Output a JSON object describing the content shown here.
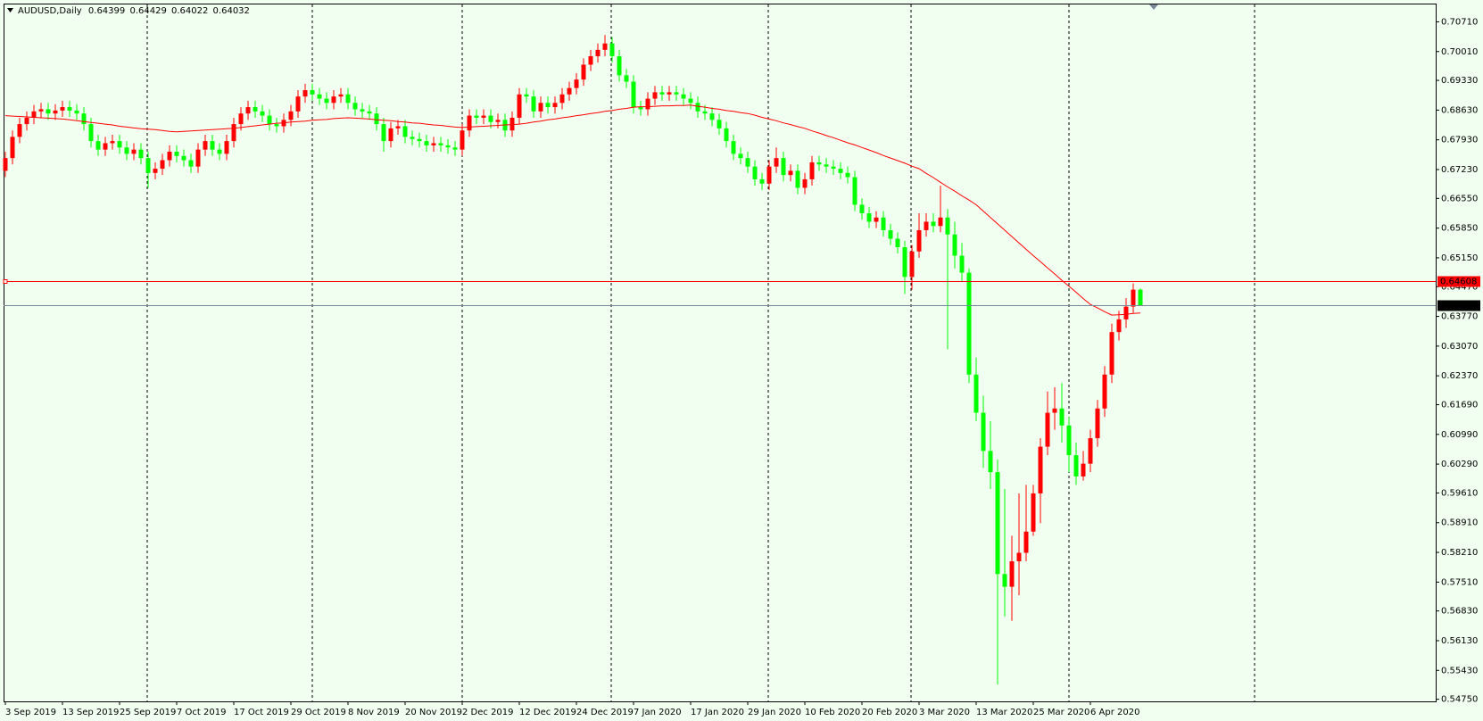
{
  "chart_data": {
    "type": "candlestick",
    "title": "AUDUSD,Daily",
    "header_ohlc": [
      0.64399,
      0.64429,
      0.64022,
      0.64032
    ],
    "up_color": "#ff0000",
    "down_color": "#00ff00",
    "categories": [
      "3 Sep 2019",
      null,
      null,
      null,
      null,
      null,
      null,
      null,
      "13 Sep 2019",
      null,
      null,
      null,
      null,
      null,
      null,
      null,
      "25 Sep 2019",
      null,
      null,
      null,
      null,
      null,
      null,
      null,
      "7 Oct 2019",
      null,
      null,
      null,
      null,
      null,
      null,
      null,
      "17 Oct 2019",
      null,
      null,
      null,
      null,
      null,
      null,
      null,
      "29 Oct 2019",
      null,
      null,
      null,
      null,
      null,
      null,
      null,
      "8 Nov 2019",
      null,
      null,
      null,
      null,
      null,
      null,
      null,
      "20 Nov 2019",
      null,
      null,
      null,
      null,
      null,
      null,
      null,
      "2 Dec 2019",
      null,
      null,
      null,
      null,
      null,
      null,
      null,
      "12 Dec 2019",
      null,
      null,
      null,
      null,
      null,
      null,
      null,
      "24 Dec 2019",
      null,
      null,
      null,
      null,
      null,
      null,
      null,
      "7 Jan 2020",
      null,
      null,
      null,
      null,
      null,
      null,
      null,
      "17 Jan 2020",
      null,
      null,
      null,
      null,
      null,
      null,
      null,
      "29 Jan 2020",
      null,
      null,
      null,
      null,
      null,
      null,
      null,
      "10 Feb 2020",
      null,
      null,
      null,
      null,
      null,
      null,
      null,
      "20 Feb 2020",
      null,
      null,
      null,
      null,
      null,
      null,
      null,
      "3 Mar 2020",
      null,
      null,
      null,
      null,
      null,
      null,
      null,
      "13 Mar 2020",
      null,
      null,
      null,
      null,
      null,
      null,
      null,
      "25 Mar 2020",
      null,
      null,
      null,
      null,
      null,
      null,
      null,
      "6 Apr 2020",
      null,
      null,
      null,
      null,
      null,
      null,
      null
    ],
    "open": [
      0.672,
      0.675,
      0.68,
      0.683,
      0.6845,
      0.686,
      0.6865,
      0.6855,
      0.6862,
      0.687,
      0.6862,
      0.6855,
      0.683,
      0.679,
      0.677,
      0.6785,
      0.679,
      0.6775,
      0.676,
      0.677,
      0.675,
      0.6715,
      0.6725,
      0.6745,
      0.6765,
      0.6755,
      0.6745,
      0.673,
      0.677,
      0.679,
      0.677,
      0.676,
      0.679,
      0.683,
      0.6855,
      0.687,
      0.686,
      0.685,
      0.683,
      0.6825,
      0.684,
      0.686,
      0.6895,
      0.691,
      0.69,
      0.689,
      0.688,
      0.6895,
      0.69,
      0.688,
      0.6865,
      0.686,
      0.6855,
      0.683,
      0.679,
      0.682,
      0.6825,
      0.68,
      0.6795,
      0.679,
      0.678,
      0.6785,
      0.678,
      0.6775,
      0.677,
      0.6815,
      0.685,
      0.6845,
      0.685,
      0.6835,
      0.684,
      0.6815,
      0.6845,
      0.69,
      0.6895,
      0.686,
      0.688,
      0.687,
      0.688,
      0.69,
      0.6915,
      0.6935,
      0.697,
      0.699,
      0.7005,
      0.702,
      0.699,
      0.6945,
      0.693,
      0.687,
      0.6865,
      0.689,
      0.6905,
      0.69,
      0.6905,
      0.69,
      0.689,
      0.688,
      0.686,
      0.6855,
      0.684,
      0.682,
      0.679,
      0.676,
      0.675,
      0.673,
      0.67,
      0.669,
      0.673,
      0.675,
      0.671,
      0.672,
      0.668,
      0.67,
      0.674,
      0.6735,
      0.673,
      0.6725,
      0.6715,
      0.6705,
      0.664,
      0.662,
      0.66,
      0.661,
      0.658,
      0.656,
      0.654,
      0.647,
      0.653,
      0.658,
      0.66,
      0.659,
      0.661,
      0.657,
      0.652,
      0.648,
      0.624,
      0.615,
      0.606,
      0.601,
      0.577,
      0.574,
      0.58,
      0.582,
      0.587,
      0.596,
      0.607,
      0.615,
      0.616,
      0.612,
      0.605,
      0.6,
      0.603,
      0.609,
      0.616,
      0.624,
      0.634,
      0.637,
      0.64,
      0.64399
    ],
    "high": [
      0.6765,
      0.6815,
      0.6845,
      0.686,
      0.6875,
      0.688,
      0.688,
      0.6877,
      0.6885,
      0.6885,
      0.6877,
      0.687,
      0.6845,
      0.6805,
      0.68,
      0.6805,
      0.6805,
      0.679,
      0.6785,
      0.6785,
      0.6765,
      0.674,
      0.676,
      0.678,
      0.678,
      0.677,
      0.676,
      0.6785,
      0.6805,
      0.6805,
      0.6785,
      0.6805,
      0.6845,
      0.687,
      0.6885,
      0.6885,
      0.6875,
      0.6865,
      0.6845,
      0.6855,
      0.6875,
      0.691,
      0.6925,
      0.6925,
      0.6915,
      0.6905,
      0.691,
      0.6915,
      0.6915,
      0.6895,
      0.688,
      0.6875,
      0.687,
      0.6845,
      0.6835,
      0.684,
      0.684,
      0.6815,
      0.681,
      0.6805,
      0.68,
      0.68,
      0.6795,
      0.679,
      0.683,
      0.6865,
      0.6865,
      0.6865,
      0.6865,
      0.6855,
      0.6855,
      0.686,
      0.6915,
      0.6915,
      0.691,
      0.6895,
      0.6895,
      0.6895,
      0.6915,
      0.693,
      0.695,
      0.6985,
      0.7005,
      0.702,
      0.704,
      0.7035,
      0.7005,
      0.696,
      0.6945,
      0.6885,
      0.6905,
      0.692,
      0.692,
      0.692,
      0.692,
      0.6915,
      0.6905,
      0.6895,
      0.6875,
      0.687,
      0.6855,
      0.6835,
      0.6805,
      0.6775,
      0.6765,
      0.6745,
      0.6715,
      0.6745,
      0.6775,
      0.6765,
      0.6735,
      0.6735,
      0.6715,
      0.6755,
      0.6755,
      0.675,
      0.6745,
      0.674,
      0.673,
      0.672,
      0.6655,
      0.6635,
      0.6625,
      0.6625,
      0.6595,
      0.6575,
      0.6555,
      0.6545,
      0.662,
      0.662,
      0.662,
      0.6685,
      0.663,
      0.66,
      0.655,
      0.649,
      0.628,
      0.619,
      0.613,
      0.604,
      0.597,
      0.586,
      0.596,
      0.598,
      0.598,
      0.609,
      0.62,
      0.621,
      0.622,
      0.614,
      0.608,
      0.606,
      0.611,
      0.618,
      0.626,
      0.636,
      0.639,
      0.642,
      0.6455,
      0.64429
    ],
    "low": [
      0.6705,
      0.6735,
      0.6785,
      0.6815,
      0.683,
      0.6845,
      0.684,
      0.684,
      0.6847,
      0.6847,
      0.684,
      0.6815,
      0.6775,
      0.6755,
      0.6755,
      0.677,
      0.676,
      0.6745,
      0.6745,
      0.6735,
      0.668,
      0.67,
      0.671,
      0.673,
      0.674,
      0.673,
      0.6715,
      0.6715,
      0.6755,
      0.6755,
      0.6745,
      0.6745,
      0.6775,
      0.6815,
      0.684,
      0.6845,
      0.6835,
      0.6815,
      0.681,
      0.681,
      0.6825,
      0.6845,
      0.688,
      0.6885,
      0.6875,
      0.6865,
      0.6865,
      0.688,
      0.6865,
      0.685,
      0.6845,
      0.684,
      0.6815,
      0.6765,
      0.6775,
      0.6805,
      0.6785,
      0.678,
      0.6775,
      0.6765,
      0.6765,
      0.6765,
      0.676,
      0.6755,
      0.6755,
      0.68,
      0.683,
      0.683,
      0.682,
      0.682,
      0.68,
      0.68,
      0.683,
      0.688,
      0.6845,
      0.6845,
      0.6855,
      0.6855,
      0.6865,
      0.6885,
      0.69,
      0.692,
      0.6955,
      0.6975,
      0.699,
      0.6975,
      0.693,
      0.6915,
      0.6855,
      0.685,
      0.685,
      0.6875,
      0.6885,
      0.6885,
      0.6885,
      0.6875,
      0.6865,
      0.6845,
      0.684,
      0.6825,
      0.6805,
      0.6775,
      0.6745,
      0.6735,
      0.6715,
      0.6685,
      0.6675,
      0.6675,
      0.6715,
      0.6695,
      0.6695,
      0.6665,
      0.6665,
      0.6685,
      0.672,
      0.6715,
      0.671,
      0.67,
      0.669,
      0.6625,
      0.6605,
      0.6585,
      0.6585,
      0.6565,
      0.6545,
      0.6525,
      0.643,
      0.644,
      0.6515,
      0.6565,
      0.6575,
      0.6575,
      0.63,
      0.649,
      0.646,
      0.622,
      0.613,
      0.602,
      0.597,
      0.551,
      0.567,
      0.566,
      0.572,
      0.58,
      0.586,
      0.589,
      0.605,
      0.611,
      0.608,
      0.601,
      0.598,
      0.599,
      0.601,
      0.607,
      0.614,
      0.622,
      0.632,
      0.635,
      0.6385,
      0.64022
    ],
    "close": [
      0.675,
      0.68,
      0.683,
      0.6845,
      0.686,
      0.6865,
      0.6855,
      0.6862,
      0.687,
      0.6862,
      0.6855,
      0.683,
      0.679,
      0.677,
      0.6785,
      0.679,
      0.6775,
      0.676,
      0.677,
      0.675,
      0.6715,
      0.6725,
      0.6745,
      0.6765,
      0.6755,
      0.6745,
      0.673,
      0.677,
      0.679,
      0.677,
      0.676,
      0.679,
      0.683,
      0.6855,
      0.687,
      0.686,
      0.685,
      0.683,
      0.6825,
      0.684,
      0.686,
      0.6895,
      0.691,
      0.69,
      0.689,
      0.688,
      0.6895,
      0.69,
      0.688,
      0.6865,
      0.686,
      0.6855,
      0.683,
      0.679,
      0.682,
      0.6825,
      0.68,
      0.6795,
      0.679,
      0.678,
      0.6785,
      0.678,
      0.6775,
      0.677,
      0.6815,
      0.685,
      0.6845,
      0.685,
      0.6835,
      0.684,
      0.6815,
      0.6845,
      0.69,
      0.6895,
      0.686,
      0.688,
      0.687,
      0.688,
      0.69,
      0.6915,
      0.6935,
      0.697,
      0.699,
      0.7005,
      0.702,
      0.699,
      0.6945,
      0.693,
      0.687,
      0.6865,
      0.689,
      0.6905,
      0.69,
      0.6905,
      0.69,
      0.689,
      0.688,
      0.686,
      0.6855,
      0.684,
      0.682,
      0.679,
      0.676,
      0.675,
      0.673,
      0.67,
      0.669,
      0.673,
      0.675,
      0.671,
      0.672,
      0.668,
      0.67,
      0.674,
      0.6735,
      0.673,
      0.6725,
      0.6715,
      0.6705,
      0.664,
      0.662,
      0.66,
      0.661,
      0.658,
      0.656,
      0.654,
      0.647,
      0.653,
      0.658,
      0.66,
      0.659,
      0.661,
      0.657,
      0.652,
      0.648,
      0.624,
      0.615,
      0.606,
      0.601,
      0.577,
      0.574,
      0.58,
      0.582,
      0.587,
      0.596,
      0.607,
      0.615,
      0.616,
      0.612,
      0.605,
      0.6,
      0.603,
      0.609,
      0.616,
      0.624,
      0.634,
      0.637,
      0.64,
      0.644,
      0.64032
    ],
    "moving_average": {
      "color": "#ff0000",
      "values": [
        0.685,
        0.6849,
        0.6848,
        0.6847,
        0.6846,
        0.6845,
        0.6844,
        0.6843,
        0.6842,
        0.684,
        0.6838,
        0.6836,
        0.6834,
        0.6832,
        0.683,
        0.6828,
        0.6825,
        0.6823,
        0.6821,
        0.6819,
        0.6818,
        0.6817,
        0.6815,
        0.6813,
        0.6812,
        0.6813,
        0.6814,
        0.6815,
        0.6816,
        0.6817,
        0.6818,
        0.6819,
        0.682,
        0.6822,
        0.6824,
        0.6826,
        0.6828,
        0.683,
        0.6832,
        0.6833,
        0.6835,
        0.6836,
        0.6837,
        0.6839,
        0.684,
        0.6841,
        0.6843,
        0.6844,
        0.6845,
        0.6844,
        0.6843,
        0.6842,
        0.684,
        0.6839,
        0.6838,
        0.6836,
        0.6835,
        0.6833,
        0.6832,
        0.683,
        0.6828,
        0.6827,
        0.6825,
        0.6823,
        0.6822,
        0.6823,
        0.6824,
        0.6825,
        0.6826,
        0.6827,
        0.6828,
        0.6829,
        0.683,
        0.6832,
        0.6835,
        0.6837,
        0.684,
        0.6842,
        0.6845,
        0.6847,
        0.685,
        0.6852,
        0.6855,
        0.6857,
        0.686,
        0.6862,
        0.6865,
        0.6867,
        0.687,
        0.6871,
        0.6871,
        0.6872,
        0.6873,
        0.6873,
        0.6874,
        0.6874,
        0.6875,
        0.6872,
        0.687,
        0.6867,
        0.6865,
        0.6862,
        0.686,
        0.6857,
        0.6855,
        0.6851,
        0.6846,
        0.6842,
        0.6838,
        0.6833,
        0.6829,
        0.6824,
        0.682,
        0.6814,
        0.6809,
        0.6803,
        0.6798,
        0.6792,
        0.6786,
        0.6781,
        0.6775,
        0.6769,
        0.6763,
        0.6756,
        0.675,
        0.6744,
        0.6738,
        0.6731,
        0.6725,
        0.6714,
        0.6704,
        0.6693,
        0.6682,
        0.6672,
        0.6661,
        0.6651,
        0.664,
        0.6625,
        0.661,
        0.6595,
        0.658,
        0.6565,
        0.655,
        0.6535,
        0.652,
        0.6506,
        0.6491,
        0.6477,
        0.6462,
        0.6448,
        0.6434,
        0.6419,
        0.6405,
        0.6397,
        0.6388,
        0.638,
        0.6381,
        0.6382,
        0.6384,
        0.6385
      ]
    },
    "price_lines": [
      {
        "value": 0.64608,
        "color": "#ff0000"
      },
      {
        "value": 0.64032,
        "color": "#778899"
      }
    ],
    "ylim": [
      0.547,
      0.7114
    ],
    "yticks": [
      {
        "value": 0.7071,
        "label": "0.70710"
      },
      {
        "value": 0.7001,
        "label": "0.70010"
      },
      {
        "value": 0.6933,
        "label": "0.69330"
      },
      {
        "value": 0.6863,
        "label": "0.68630"
      },
      {
        "value": 0.6793,
        "label": "0.67930"
      },
      {
        "value": 0.6723,
        "label": "0.67230"
      },
      {
        "value": 0.6655,
        "label": "0.66550"
      },
      {
        "value": 0.6585,
        "label": "0.65850"
      },
      {
        "value": 0.6515,
        "label": "0.65150"
      },
      {
        "value": 0.6447,
        "label": "0.64470"
      },
      {
        "value": 0.6377,
        "label": "0.63770"
      },
      {
        "value": 0.6307,
        "label": "0.63070"
      },
      {
        "value": 0.6237,
        "label": "0.62370"
      },
      {
        "value": 0.6169,
        "label": "0.61690"
      },
      {
        "value": 0.6099,
        "label": "0.60990"
      },
      {
        "value": 0.6029,
        "label": "0.60290"
      },
      {
        "value": 0.5961,
        "label": "0.59610"
      },
      {
        "value": 0.5891,
        "label": "0.58910"
      },
      {
        "value": 0.5821,
        "label": "0.58210"
      },
      {
        "value": 0.5751,
        "label": "0.57510"
      },
      {
        "value": 0.5683,
        "label": "0.56830"
      },
      {
        "value": 0.5613,
        "label": "0.56130"
      },
      {
        "value": 0.5543,
        "label": "0.55430"
      },
      {
        "value": 0.5475,
        "label": "0.54750"
      }
    ]
  }
}
